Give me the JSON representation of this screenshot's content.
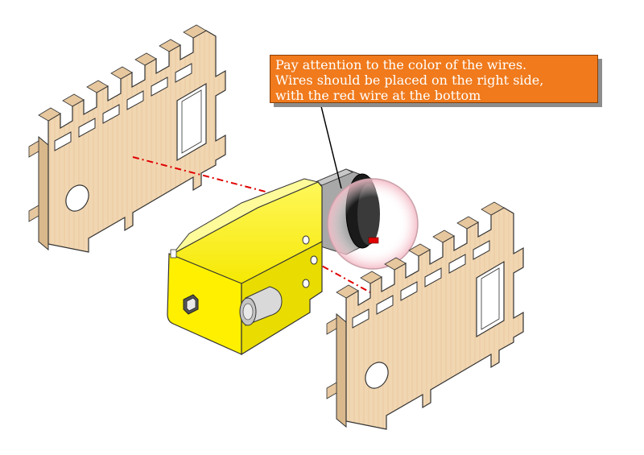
{
  "callout": {
    "line1": "Pay attention to the color of the wires.",
    "line2": "Wires should be placed on the right side,",
    "line3": "with the red wire at the bottom"
  },
  "colors": {
    "wood_face": "#f1d6b2",
    "wood_edge": "#d9b88c",
    "motor_yellow": "#fff200",
    "motor_shadow": "#d8cc00",
    "motor_can": "#a8a8a8",
    "callout_bg": "#f07a1c",
    "axis_line": "#e00000",
    "red_wire": "#e00000"
  }
}
